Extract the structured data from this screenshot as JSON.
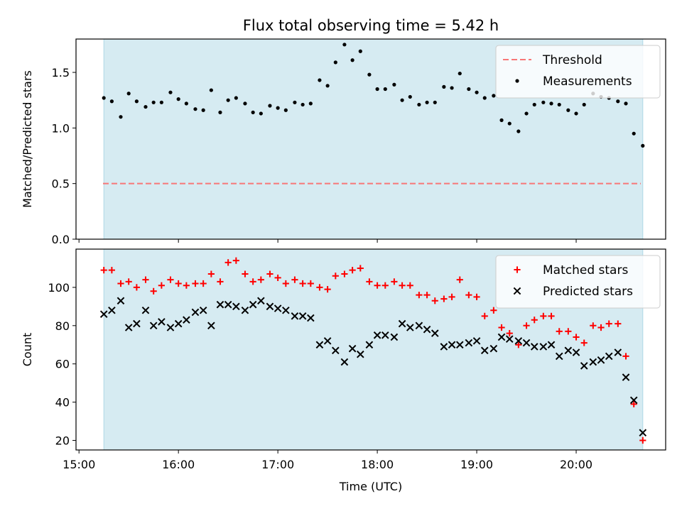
{
  "chart_data": {
    "title": "Flux total observing time = 5.42 h",
    "colors": {
      "span": "#add8e6",
      "threshold": "#f87777",
      "measurement": "#000000",
      "matched": "#ff0000",
      "predicted": "#000000"
    },
    "panels": [
      {
        "type": "scatter",
        "ylabel": "Matched/Predicted stars",
        "ylim": [
          0,
          1.8
        ],
        "yticks": [
          0,
          0.5,
          1.0,
          1.5
        ],
        "ytick_labels": [
          "0.0",
          "0.5",
          "1.0",
          "1.5"
        ],
        "legend_position": "top-right",
        "threshold": {
          "name": "Threshold",
          "value": 0.5,
          "style": "dashed"
        },
        "series": [
          {
            "name": "Measurements",
            "marker": "dot",
            "x": [
              15.25,
              15.33,
              15.42,
              15.5,
              15.58,
              15.67,
              15.75,
              15.83,
              15.92,
              16.0,
              16.08,
              16.17,
              16.25,
              16.33,
              16.42,
              16.5,
              16.58,
              16.67,
              16.75,
              16.83,
              16.92,
              17.0,
              17.08,
              17.17,
              17.25,
              17.33,
              17.42,
              17.5,
              17.58,
              17.67,
              17.75,
              17.83,
              17.92,
              18.0,
              18.08,
              18.17,
              18.25,
              18.33,
              18.42,
              18.5,
              18.58,
              18.67,
              18.75,
              18.83,
              18.92,
              19.0,
              19.08,
              19.17,
              19.25,
              19.33,
              19.42,
              19.5,
              19.58,
              19.67,
              19.75,
              19.83,
              19.92,
              20.0,
              20.08,
              20.17,
              20.25,
              20.33,
              20.42,
              20.5,
              20.58,
              20.67
            ],
            "y": [
              1.27,
              1.24,
              1.1,
              1.31,
              1.24,
              1.19,
              1.23,
              1.23,
              1.32,
              1.26,
              1.22,
              1.17,
              1.16,
              1.34,
              1.14,
              1.25,
              1.27,
              1.22,
              1.14,
              1.13,
              1.2,
              1.18,
              1.16,
              1.23,
              1.21,
              1.22,
              1.43,
              1.38,
              1.59,
              1.75,
              1.61,
              1.69,
              1.48,
              1.35,
              1.35,
              1.39,
              1.25,
              1.28,
              1.21,
              1.23,
              1.23,
              1.37,
              1.36,
              1.49,
              1.35,
              1.32,
              1.27,
              1.29,
              1.07,
              1.04,
              0.97,
              1.13,
              1.21,
              1.23,
              1.22,
              1.21,
              1.16,
              1.13,
              1.21,
              1.31,
              1.28,
              1.27,
              1.24,
              1.22,
              0.95,
              0.84
            ]
          }
        ]
      },
      {
        "type": "scatter",
        "ylabel": "Count",
        "xlabel": "Time (UTC)",
        "ylim": [
          15,
          120
        ],
        "yticks": [
          20,
          40,
          60,
          80,
          100
        ],
        "xlim": [
          14.97,
          20.9
        ],
        "xticks": [
          15,
          16,
          17,
          18,
          19,
          20
        ],
        "xtick_labels": [
          "15:00",
          "16:00",
          "17:00",
          "18:00",
          "19:00",
          "20:00"
        ],
        "legend_position": "top-right",
        "series": [
          {
            "name": "Matched stars",
            "marker": "plus",
            "x": [
              15.25,
              15.33,
              15.42,
              15.5,
              15.58,
              15.67,
              15.75,
              15.83,
              15.92,
              16.0,
              16.08,
              16.17,
              16.25,
              16.33,
              16.42,
              16.5,
              16.58,
              16.67,
              16.75,
              16.83,
              16.92,
              17.0,
              17.08,
              17.17,
              17.25,
              17.33,
              17.42,
              17.5,
              17.58,
              17.67,
              17.75,
              17.83,
              17.92,
              18.0,
              18.08,
              18.17,
              18.25,
              18.33,
              18.42,
              18.5,
              18.58,
              18.67,
              18.75,
              18.83,
              18.92,
              19.0,
              19.08,
              19.17,
              19.25,
              19.33,
              19.42,
              19.5,
              19.58,
              19.67,
              19.75,
              19.83,
              19.92,
              20.0,
              20.08,
              20.17,
              20.25,
              20.33,
              20.42,
              20.5,
              20.58,
              20.67
            ],
            "y": [
              109,
              109,
              102,
              103,
              100,
              104,
              98,
              101,
              104,
              102,
              101,
              102,
              102,
              107,
              103,
              113,
              114,
              107,
              103,
              104,
              107,
              105,
              102,
              104,
              102,
              102,
              100,
              99,
              106,
              107,
              109,
              110,
              103,
              101,
              101,
              103,
              101,
              101,
              96,
              96,
              93,
              94,
              95,
              104,
              96,
              95,
              85,
              88,
              79,
              76,
              70,
              80,
              83,
              85,
              85,
              77,
              77,
              74,
              71,
              80,
              79,
              81,
              81,
              64,
              39,
              20
            ]
          },
          {
            "name": "Predicted stars",
            "marker": "x",
            "x": [
              15.25,
              15.33,
              15.42,
              15.5,
              15.58,
              15.67,
              15.75,
              15.83,
              15.92,
              16.0,
              16.08,
              16.17,
              16.25,
              16.33,
              16.42,
              16.5,
              16.58,
              16.67,
              16.75,
              16.83,
              16.92,
              17.0,
              17.08,
              17.17,
              17.25,
              17.33,
              17.42,
              17.5,
              17.58,
              17.67,
              17.75,
              17.83,
              17.92,
              18.0,
              18.08,
              18.17,
              18.25,
              18.33,
              18.42,
              18.5,
              18.58,
              18.67,
              18.75,
              18.83,
              18.92,
              19.0,
              19.08,
              19.17,
              19.25,
              19.33,
              19.42,
              19.5,
              19.58,
              19.67,
              19.75,
              19.83,
              19.92,
              20.0,
              20.08,
              20.17,
              20.25,
              20.33,
              20.42,
              20.5,
              20.58,
              20.67
            ],
            "y": [
              86,
              88,
              93,
              79,
              81,
              88,
              80,
              82,
              79,
              81,
              83,
              87,
              88,
              80,
              91,
              91,
              90,
              88,
              91,
              93,
              90,
              89,
              88,
              85,
              85,
              84,
              70,
              72,
              67,
              61,
              68,
              65,
              70,
              75,
              75,
              74,
              81,
              79,
              80,
              78,
              76,
              69,
              70,
              70,
              71,
              72,
              67,
              68,
              74,
              73,
              72,
              71,
              69,
              69,
              70,
              64,
              67,
              66,
              59,
              61,
              62,
              64,
              66,
              53,
              41,
              24
            ]
          }
        ]
      }
    ],
    "span": {
      "x_start": 15.25,
      "x_end": 20.67
    }
  }
}
